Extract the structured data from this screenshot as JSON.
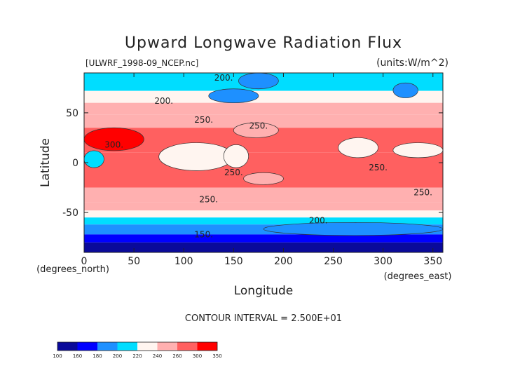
{
  "title": "Upward Longwave Radiation Flux",
  "source_label": "[ULWRF_1998-09_NCEP.nc]",
  "units_label": "(units:W/m^2)",
  "xlabel": "Longitude",
  "ylabel": "Latitude",
  "x_units": "(degrees_east)",
  "y_units": "(degrees_north)",
  "contour_interval_text": "CONTOUR INTERVAL = 2.500E+01",
  "chart_data": {
    "type": "heatmap",
    "title": "Upward Longwave Radiation Flux",
    "xlabel": "Longitude",
    "ylabel": "Latitude",
    "xlim": [
      0,
      360
    ],
    "ylim": [
      -90,
      90
    ],
    "x_ticks": [
      0,
      50,
      100,
      150,
      200,
      250,
      300,
      350
    ],
    "y_ticks": [
      -50,
      0,
      50
    ],
    "contour_interval": 25,
    "contour_labels": [
      {
        "text": "200.",
        "lon": 140,
        "lat": 85
      },
      {
        "text": "200.",
        "lon": 80,
        "lat": 62
      },
      {
        "text": "250.",
        "lon": 120,
        "lat": 43
      },
      {
        "text": "250.",
        "lon": 175,
        "lat": 37
      },
      {
        "text": "300.",
        "lon": 30,
        "lat": 18
      },
      {
        "text": "250.",
        "lon": 150,
        "lat": -10
      },
      {
        "text": "250.",
        "lon": 295,
        "lat": -5
      },
      {
        "text": "250.",
        "lon": 340,
        "lat": -30
      },
      {
        "text": "250.",
        "lon": 125,
        "lat": -37
      },
      {
        "text": "200.",
        "lon": 235,
        "lat": -58
      },
      {
        "text": "150.",
        "lon": 120,
        "lat": -72
      }
    ],
    "colorbar": {
      "ticks": [
        "100",
        "160",
        "180",
        "200",
        "220",
        "240",
        "260",
        "300",
        "350"
      ],
      "colors": [
        "#0a0a9a",
        "#0000ff",
        "#1e90ff",
        "#00ddff",
        "#fff5f0",
        "#ffb0b0",
        "#ff6060",
        "#ff0000"
      ]
    },
    "bands": [
      {
        "lat_top": 90,
        "lat_bottom": 84,
        "value": 200
      },
      {
        "lat_top": 84,
        "lat_bottom": 72,
        "value": 210
      },
      {
        "lat_top": 72,
        "lat_bottom": 60,
        "value": 225
      },
      {
        "lat_top": 60,
        "lat_bottom": 48,
        "value": 245
      },
      {
        "lat_top": 48,
        "lat_bottom": 35,
        "value": 255
      },
      {
        "lat_top": 35,
        "lat_bottom": 10,
        "value": 270
      },
      {
        "lat_top": 10,
        "lat_bottom": -25,
        "value": 270
      },
      {
        "lat_top": -25,
        "lat_bottom": -40,
        "value": 255
      },
      {
        "lat_top": -40,
        "lat_bottom": -48,
        "value": 245
      },
      {
        "lat_top": -48,
        "lat_bottom": -55,
        "value": 225
      },
      {
        "lat_top": -55,
        "lat_bottom": -62,
        "value": 210
      },
      {
        "lat_top": -62,
        "lat_bottom": -72,
        "value": 190
      },
      {
        "lat_top": -72,
        "lat_bottom": -80,
        "value": 170
      },
      {
        "lat_top": -80,
        "lat_bottom": -90,
        "value": 150
      }
    ],
    "features": [
      {
        "lon_min": 0,
        "lon_max": 60,
        "lat_min": 12,
        "lat_max": 35,
        "value": 310
      },
      {
        "lon_min": 0,
        "lon_max": 20,
        "lat_min": -5,
        "lat_max": 12,
        "value": 215
      },
      {
        "lon_min": 75,
        "lon_max": 150,
        "lat_min": -8,
        "lat_max": 20,
        "value": 220
      },
      {
        "lon_min": 140,
        "lon_max": 165,
        "lat_min": -5,
        "lat_max": 18,
        "value": 230
      },
      {
        "lon_min": 255,
        "lon_max": 295,
        "lat_min": 5,
        "lat_max": 25,
        "value": 220
      },
      {
        "lon_min": 310,
        "lon_max": 360,
        "lat_min": 5,
        "lat_max": 20,
        "value": 230
      },
      {
        "lon_min": 150,
        "lon_max": 195,
        "lat_min": 25,
        "lat_max": 40,
        "value": 250
      },
      {
        "lon_min": 160,
        "lon_max": 200,
        "lat_min": -22,
        "lat_max": -10,
        "value": 250
      },
      {
        "lon_min": 125,
        "lon_max": 175,
        "lat_min": 60,
        "lat_max": 74,
        "value": 195
      },
      {
        "lon_min": 155,
        "lon_max": 195,
        "lat_min": 74,
        "lat_max": 90,
        "value": 190
      },
      {
        "lon_min": 310,
        "lon_max": 335,
        "lat_min": 65,
        "lat_max": 80,
        "value": 190
      },
      {
        "lon_min": 180,
        "lon_max": 360,
        "lat_min": -73,
        "lat_max": -60,
        "value": 180
      }
    ]
  }
}
